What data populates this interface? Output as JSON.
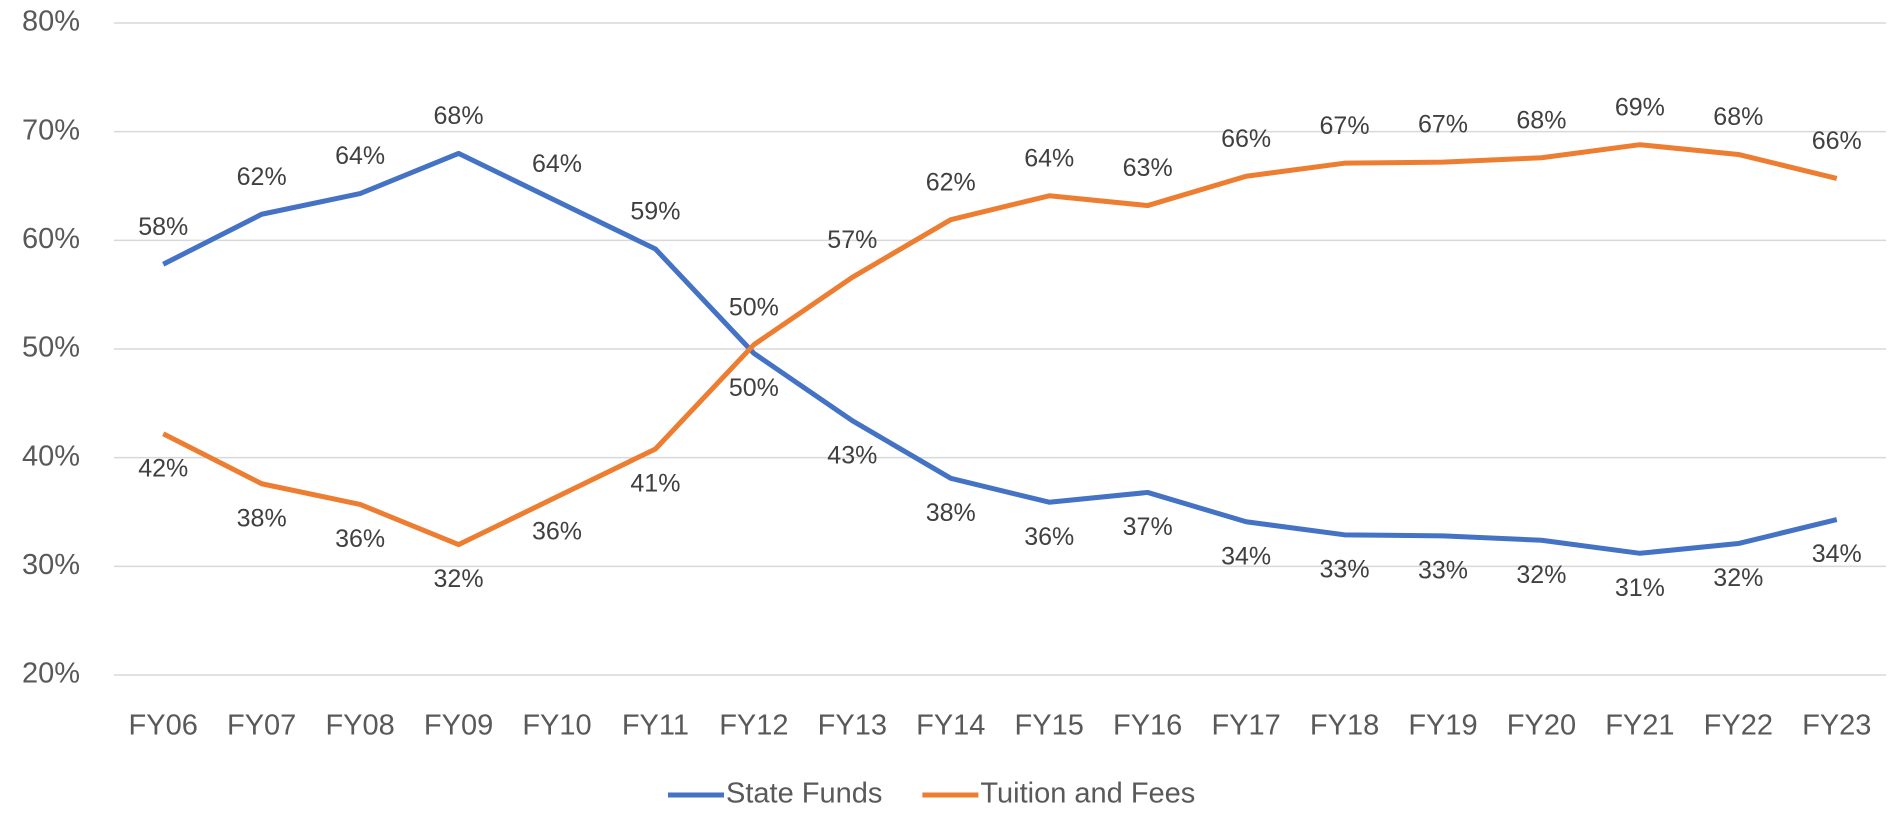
{
  "chart_data": {
    "type": "line",
    "categories": [
      "FY06",
      "FY07",
      "FY08",
      "FY09",
      "FY10",
      "FY11",
      "FY12",
      "FY13",
      "FY14",
      "FY15",
      "FY16",
      "FY17",
      "FY18",
      "FY19",
      "FY20",
      "FY21",
      "FY22",
      "FY23"
    ],
    "series": [
      {
        "name": "State Funds",
        "color": "#4472c4",
        "values": [
          57.8,
          62.4,
          64.3,
          68,
          63.6,
          59.2,
          49.6,
          43.4,
          38.1,
          35.9,
          36.8,
          34.1,
          32.9,
          32.8,
          32.4,
          31.2,
          32.1,
          34.3
        ],
        "value_labels": [
          "58%",
          "62%",
          "64%",
          "68%",
          "64%",
          "59%",
          "50%",
          "43%",
          "38%",
          "36%",
          "37%",
          "34%",
          "33%",
          "33%",
          "32%",
          "31%",
          "32%",
          "34%"
        ]
      },
      {
        "name": "Tuition and Fees",
        "color": "#ed7d31",
        "values": [
          42.2,
          37.6,
          35.7,
          32,
          36.4,
          40.8,
          50.4,
          56.6,
          61.9,
          64.1,
          63.2,
          65.9,
          67.1,
          67.2,
          67.6,
          68.8,
          67.9,
          65.7
        ],
        "value_labels": [
          "42%",
          "38%",
          "36%",
          "32%",
          "36%",
          "41%",
          "50%",
          "57%",
          "62%",
          "64%",
          "63%",
          "66%",
          "67%",
          "67%",
          "68%",
          "69%",
          "68%",
          "66%"
        ]
      }
    ],
    "ylim": [
      20,
      80
    ],
    "yticks": [
      {
        "value": 20,
        "label": "20%"
      },
      {
        "value": 30,
        "label": "30%"
      },
      {
        "value": 40,
        "label": "40%"
      },
      {
        "value": 50,
        "label": "50%"
      },
      {
        "value": 60,
        "label": "60%"
      },
      {
        "value": 70,
        "label": "70%"
      },
      {
        "value": 80,
        "label": "80%"
      }
    ],
    "grid": true,
    "legend": "bottom"
  }
}
